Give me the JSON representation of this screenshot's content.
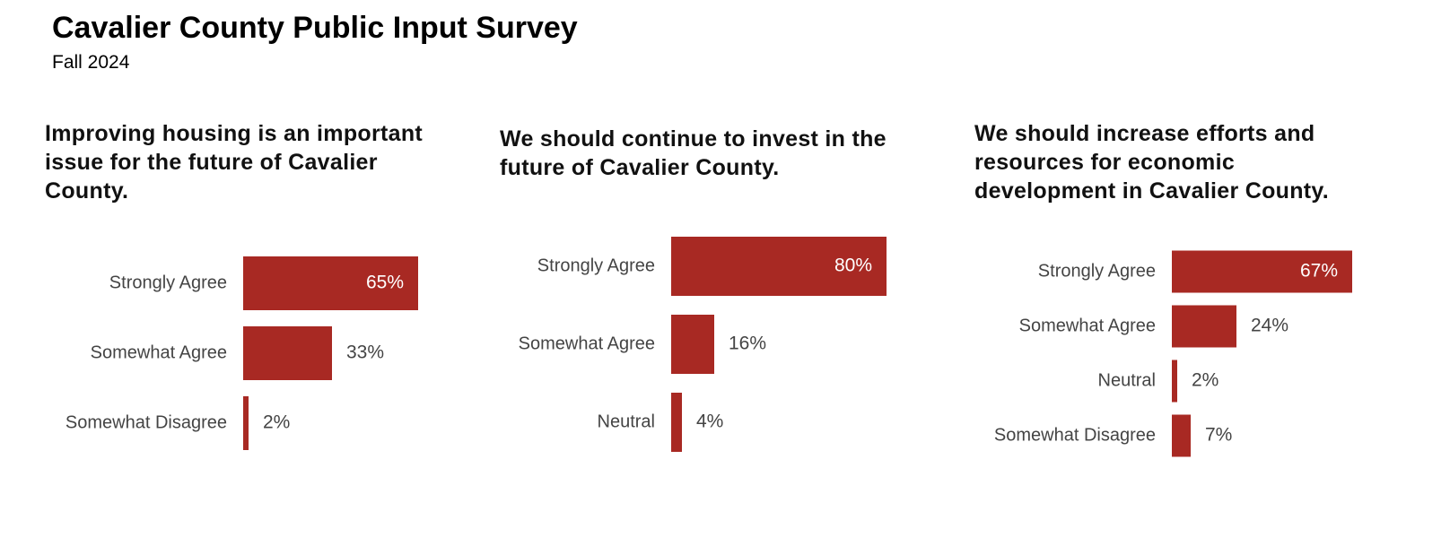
{
  "header": {
    "title": "Cavalier County Public Input Survey",
    "subtitle": "Fall 2024"
  },
  "chart_data": [
    {
      "type": "bar",
      "orientation": "horizontal",
      "title": "Improving housing is an important issue for the future of Cavalier County.",
      "categories": [
        "Strongly Agree",
        "Somewhat Agree",
        "Somewhat Disagree"
      ],
      "values": [
        65,
        33,
        2
      ],
      "value_labels": [
        "65%",
        "33%",
        "2%"
      ],
      "color": "#a82923"
    },
    {
      "type": "bar",
      "orientation": "horizontal",
      "title": "We should continue to invest in the future of Cavalier County.",
      "categories": [
        "Strongly Agree",
        "Somewhat Agree",
        "Neutral"
      ],
      "values": [
        80,
        16,
        4
      ],
      "value_labels": [
        "80%",
        "16%",
        "4%"
      ],
      "color": "#a82923"
    },
    {
      "type": "bar",
      "orientation": "horizontal",
      "title": "We should increase efforts and resources for economic development in Cavalier County.",
      "categories": [
        "Strongly Agree",
        "Somewhat Agree",
        "Neutral",
        "Somewhat Disagree"
      ],
      "values": [
        67,
        24,
        2,
        7
      ],
      "value_labels": [
        "67%",
        "24%",
        "2%",
        "7%"
      ],
      "color": "#a82923"
    }
  ]
}
